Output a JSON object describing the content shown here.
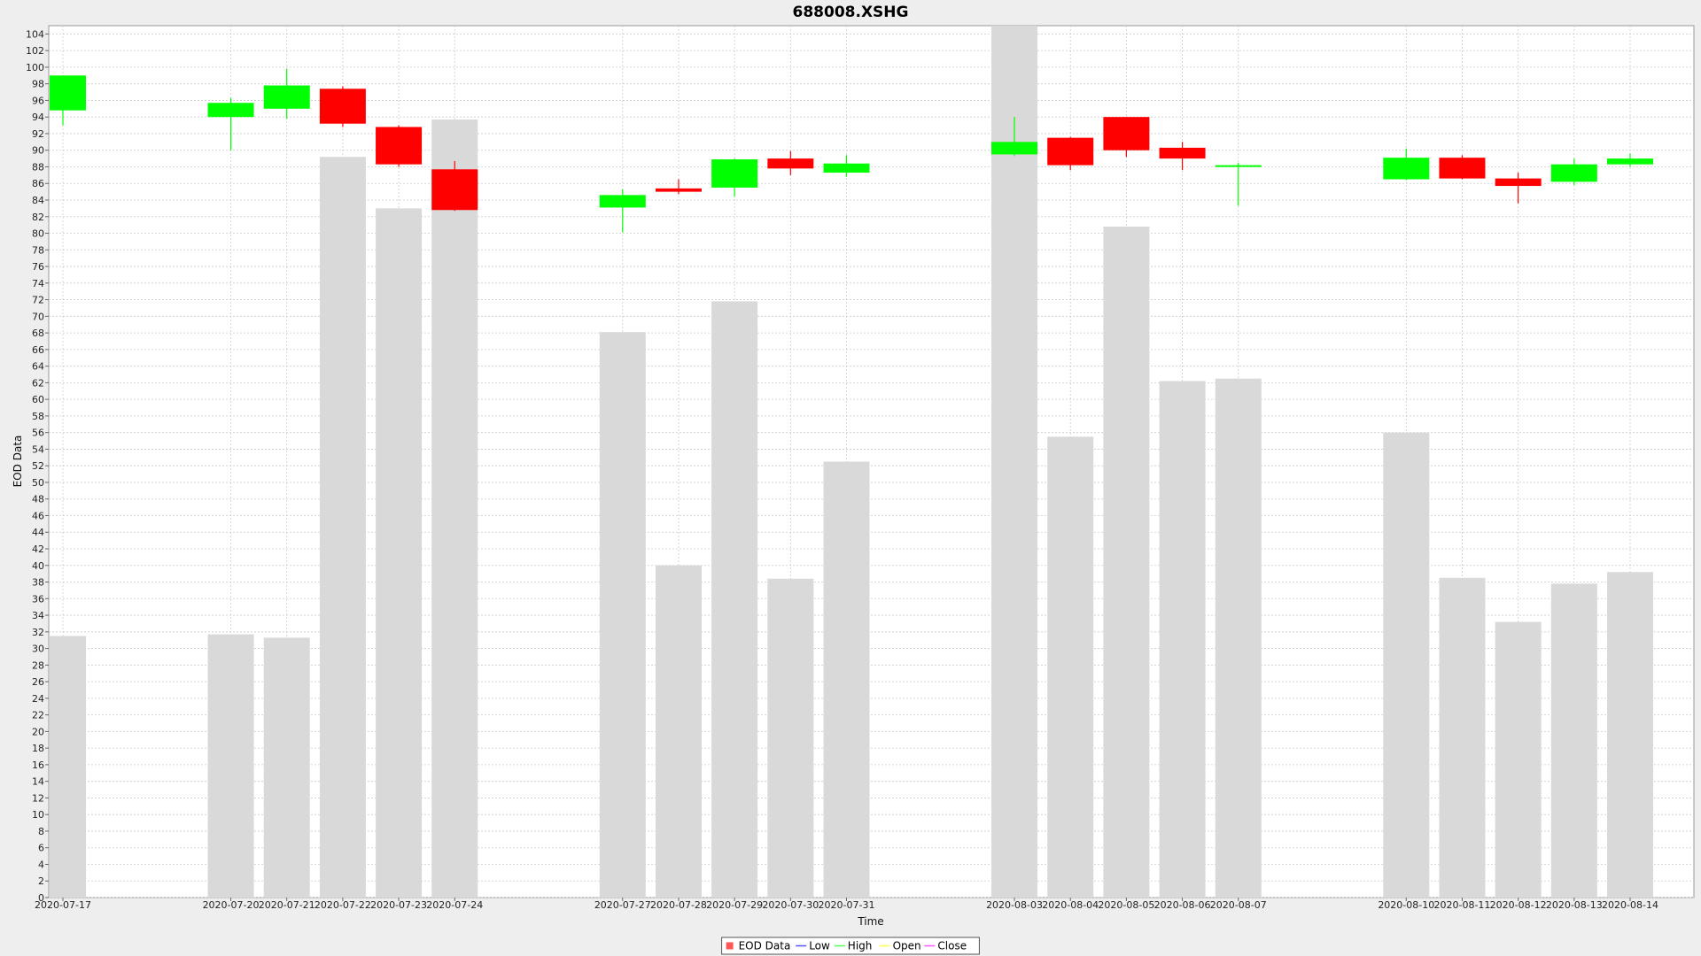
{
  "chart_data": {
    "type": "candlestick",
    "title": "688008.XSHG",
    "xlabel": "Time",
    "ylabel": "EOD Data",
    "ylim": [
      0,
      105
    ],
    "ytick_step": 2,
    "grid": true,
    "legend_position": "bottom-center",
    "legend": [
      {
        "name": "EOD Data",
        "color": "#ff5555",
        "shape": "square"
      },
      {
        "name": "Low",
        "color": "#5555ff",
        "shape": "line"
      },
      {
        "name": "High",
        "color": "#55ff55",
        "shape": "line"
      },
      {
        "name": "Open",
        "color": "#ffff55",
        "shape": "line"
      },
      {
        "name": "Close",
        "color": "#ff55ff",
        "shape": "line"
      }
    ],
    "colors": {
      "up": "#00ff00",
      "down": "#ff0000",
      "volume": "#d9d9d9",
      "plot_bg": "#ffffff",
      "grid": "#cccccc"
    },
    "candles": [
      {
        "date": "2020-07-17",
        "open": 94.8,
        "close": 99.0,
        "high": 99.0,
        "low": 93.0,
        "volume": 31.5
      },
      {
        "date": "2020-07-20",
        "open": 94.0,
        "close": 95.7,
        "high": 96.3,
        "low": 90.0,
        "volume": 31.7
      },
      {
        "date": "2020-07-21",
        "open": 95.0,
        "close": 97.8,
        "high": 99.8,
        "low": 93.8,
        "volume": 31.3
      },
      {
        "date": "2020-07-22",
        "open": 97.4,
        "close": 93.2,
        "high": 97.7,
        "low": 92.8,
        "volume": 89.2
      },
      {
        "date": "2020-07-23",
        "open": 92.8,
        "close": 88.3,
        "high": 93.0,
        "low": 88.0,
        "volume": 83.0
      },
      {
        "date": "2020-07-24",
        "open": 87.7,
        "close": 82.8,
        "high": 88.7,
        "low": 82.7,
        "volume": 93.7
      },
      {
        "date": "2020-07-27",
        "open": 83.1,
        "close": 84.6,
        "high": 85.3,
        "low": 80.1,
        "volume": 68.1
      },
      {
        "date": "2020-07-28",
        "open": 85.4,
        "close": 85.0,
        "high": 86.5,
        "low": 84.7,
        "volume": 40.0
      },
      {
        "date": "2020-07-29",
        "open": 85.5,
        "close": 88.9,
        "high": 89.0,
        "low": 84.4,
        "volume": 71.8
      },
      {
        "date": "2020-07-30",
        "open": 89.0,
        "close": 87.8,
        "high": 89.9,
        "low": 87.0,
        "volume": 38.4
      },
      {
        "date": "2020-07-31",
        "open": 87.3,
        "close": 88.4,
        "high": 89.4,
        "low": 86.8,
        "volume": 52.5
      },
      {
        "date": "2020-08-03",
        "open": 89.5,
        "close": 91.0,
        "high": 94.0,
        "low": 89.3,
        "volume": 105.0
      },
      {
        "date": "2020-08-04",
        "open": 91.5,
        "close": 88.2,
        "high": 91.6,
        "low": 87.6,
        "volume": 55.5
      },
      {
        "date": "2020-08-05",
        "open": 94.0,
        "close": 90.0,
        "high": 94.0,
        "low": 89.2,
        "volume": 80.8
      },
      {
        "date": "2020-08-06",
        "open": 90.3,
        "close": 89.0,
        "high": 91.0,
        "low": 87.6,
        "volume": 62.2
      },
      {
        "date": "2020-08-07",
        "open": 88.0,
        "close": 88.2,
        "high": 88.5,
        "low": 83.3,
        "volume": 62.5
      },
      {
        "date": "2020-08-10",
        "open": 86.5,
        "close": 89.1,
        "high": 90.2,
        "low": 86.4,
        "volume": 56.0
      },
      {
        "date": "2020-08-11",
        "open": 89.1,
        "close": 86.6,
        "high": 89.4,
        "low": 86.5,
        "volume": 38.5
      },
      {
        "date": "2020-08-12",
        "open": 86.6,
        "close": 85.7,
        "high": 87.3,
        "low": 83.6,
        "volume": 33.2
      },
      {
        "date": "2020-08-13",
        "open": 86.2,
        "close": 88.3,
        "high": 89.0,
        "low": 85.8,
        "volume": 37.8
      },
      {
        "date": "2020-08-14",
        "open": 88.3,
        "close": 89.0,
        "high": 89.6,
        "low": 88.0,
        "volume": 39.2
      }
    ]
  }
}
